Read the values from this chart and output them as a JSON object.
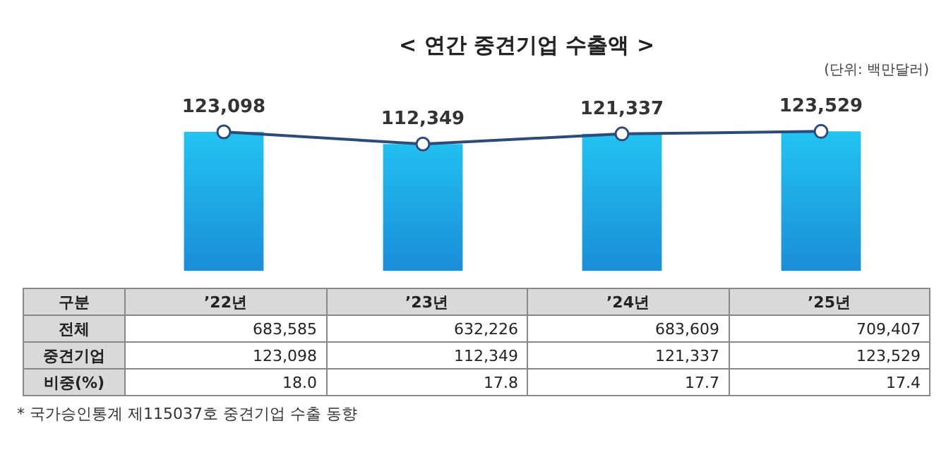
{
  "chart_data": {
    "type": "bar",
    "title": "< 연간 중견기업 수출액 >",
    "subtitle": "(단위: 백만달러)",
    "xlabel": "구분",
    "categories": [
      "’22년",
      "’23년",
      "’24년",
      "’25년"
    ],
    "series": [
      {
        "name": "중견기업",
        "color": "#1a8ad6",
        "values": [
          123098,
          112349,
          121337,
          123529
        ]
      },
      {
        "type": "line",
        "color": "#2c4a7a",
        "values": [
          123098,
          112349,
          121337,
          123529
        ],
        "value_labels": [
          "123,098",
          "112,349",
          "121,337",
          "123,529"
        ]
      }
    ],
    "tick_labels": "x",
    "legend": false,
    "marker": "circle",
    "annotations": [
      "전체",
      "683,585",
      "632,226",
      "683,609",
      "709,407",
      "비중(%)",
      "18.0",
      "17.8",
      "17.7",
      "17.4",
      "* 국가승인통계 제115037호 중견기업 수출 동향"
    ]
  }
}
